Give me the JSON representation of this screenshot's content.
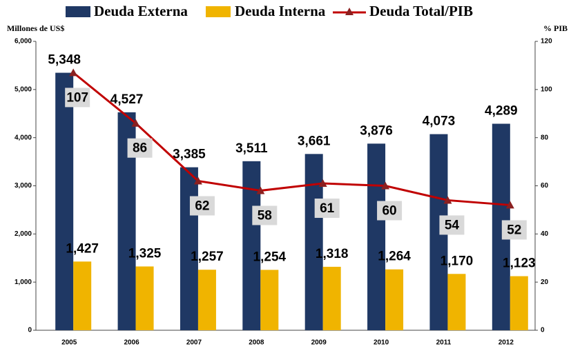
{
  "chart_data": {
    "type": "bar",
    "ylabel": "Millones de US$",
    "y2label": "% PIB",
    "categories": [
      "2005",
      "2006",
      "2007",
      "2008",
      "2009",
      "2010",
      "2011",
      "2012"
    ],
    "series": [
      {
        "name": "Deuda Externa",
        "color": "#1f3864",
        "values": [
          5348,
          4527,
          3385,
          3511,
          3661,
          3876,
          4073,
          4289
        ],
        "value_labels": [
          "5,348",
          "4,527",
          "3,385",
          "3,511",
          "3,661",
          "3,876",
          "4,073",
          "4,289"
        ]
      },
      {
        "name": "Deuda Interna",
        "color": "#f0b400",
        "values": [
          1427,
          1325,
          1257,
          1254,
          1318,
          1264,
          1170,
          1123
        ],
        "value_labels": [
          "1,427",
          "1,325",
          "1,257",
          "1,254",
          "1,318",
          "1,264",
          "1,170",
          "1,123"
        ]
      },
      {
        "name": "Deuda Total/PIB",
        "type": "line",
        "axis": "y2",
        "color": "#c00000",
        "marker_color": "#8b2020",
        "values": [
          107,
          86,
          62,
          58,
          61,
          60,
          54,
          52
        ]
      }
    ],
    "ylim": [
      0,
      6000
    ],
    "yticks": [
      0,
      {
        "value": 1000,
        "label": "1,000"
      },
      {
        "value": 2000,
        "label": "2,000"
      },
      {
        "value": 3000,
        "label": "3,000"
      },
      {
        "value": 4000,
        "label": "4,000"
      },
      {
        "value": 5000,
        "label": "5,000"
      },
      {
        "value": 6000,
        "label": "6,000"
      }
    ],
    "y2lim": [
      0,
      120
    ],
    "y2ticks": [
      0,
      20,
      40,
      60,
      80,
      100,
      120
    ],
    "grid": false
  }
}
